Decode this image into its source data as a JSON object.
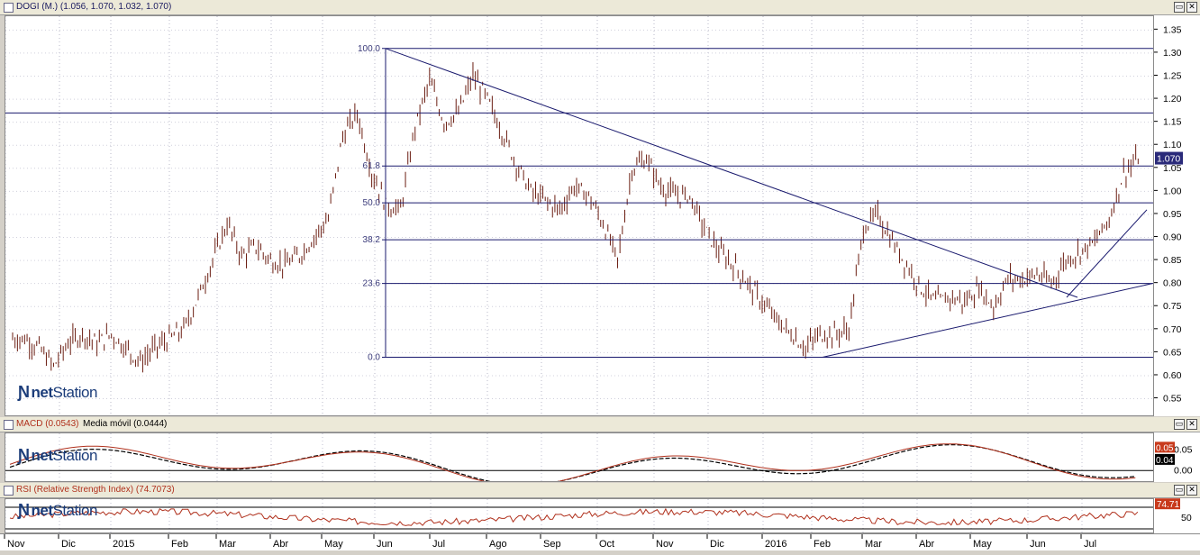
{
  "main_panel": {
    "title": "DOGI (M.) (1.056, 1.070, 1.032, 1.070)",
    "last_price_label": "1.070",
    "logo_net": "net",
    "logo_station": "Station"
  },
  "macd_panel": {
    "title": "MACD (0.0543)",
    "subtitle": "Media móvil (0.0444)",
    "value_label": "0.05",
    "signal_label": "0.04"
  },
  "rsi_panel": {
    "title": "RSI (Relative Strength Index) (74.7073)",
    "value_label": "74.71",
    "level_label": "50"
  },
  "window_buttons": {
    "minimize": "▭",
    "close": "✕"
  },
  "colors": {
    "line": "#1a1a6e",
    "candle": "#6b1e12",
    "macd": "#b0301c",
    "signal": "#000000",
    "rsi": "#b0301c",
    "label_bg": "#2a2a7a",
    "rsi_label_bg": "#c83a1c"
  },
  "chart_data": {
    "type": "line",
    "title": "DOGI (M.) (1.056, 1.070, 1.032, 1.070)",
    "x_labels": [
      "Nov",
      "Dic",
      "2015",
      "Feb",
      "Mar",
      "Abr",
      "May",
      "Jun",
      "Jul",
      "Ago",
      "Sep",
      "Oct",
      "Nov",
      "Dic",
      "2016",
      "Feb",
      "Mar",
      "Abr",
      "May",
      "Jun",
      "Jul"
    ],
    "y_ticks": [
      0.55,
      0.6,
      0.65,
      0.7,
      0.75,
      0.8,
      0.85,
      0.9,
      0.95,
      1.0,
      1.05,
      1.1,
      1.15,
      1.2,
      1.25,
      1.3,
      1.35
    ],
    "ylim": [
      0.51,
      1.38
    ],
    "last_close": 1.07,
    "fibonacci": [
      {
        "label": "100.0",
        "value": 1.31
      },
      {
        "label": "61.8",
        "value": 1.055
      },
      {
        "label": "50.0",
        "value": 0.975
      },
      {
        "label": "38.2",
        "value": 0.895
      },
      {
        "label": "23.6",
        "value": 0.8
      },
      {
        "label": "0.0",
        "value": 0.64
      }
    ],
    "horizontal_line": 1.17,
    "trendlines": [
      {
        "from": [
          "Jun",
          1.31
        ],
        "to": [
          "Jul",
          0.77
        ]
      },
      {
        "from": [
          "Feb",
          0.64
        ],
        "to": [
          "Jul",
          0.8
        ]
      },
      {
        "from": [
          "Jul",
          0.77
        ],
        "to": [
          "Jul",
          0.96
        ]
      }
    ],
    "price_path": [
      [
        "Nov",
        0.68
      ],
      [
        "Nov",
        0.66
      ],
      [
        "Nov",
        0.62
      ],
      [
        "Dic",
        0.67
      ],
      [
        "Dic",
        0.69
      ],
      [
        "Dic",
        0.67
      ],
      [
        "Dic",
        0.69
      ],
      [
        "2015",
        0.66
      ],
      [
        "2015",
        0.63
      ],
      [
        "2015",
        0.66
      ],
      [
        "2015",
        0.68
      ],
      [
        "Feb",
        0.7
      ],
      [
        "Feb",
        0.77
      ],
      [
        "Feb",
        0.85
      ],
      [
        "Feb",
        0.93
      ],
      [
        "Mar",
        0.86
      ],
      [
        "Mar",
        0.88
      ],
      [
        "Mar",
        0.85
      ],
      [
        "Mar",
        0.84
      ],
      [
        "Abr",
        0.86
      ],
      [
        "Abr",
        0.9
      ],
      [
        "Abr",
        0.94
      ],
      [
        "Abr",
        1.12
      ],
      [
        "May",
        1.17
      ],
      [
        "May",
        1.04
      ],
      [
        "May",
        0.97
      ],
      [
        "May",
        0.96
      ],
      [
        "Jun",
        1.14
      ],
      [
        "Jun",
        1.24
      ],
      [
        "Jun",
        1.15
      ],
      [
        "Jun",
        1.17
      ],
      [
        "Jul",
        1.25
      ],
      [
        "Jul",
        1.2
      ],
      [
        "Jul",
        1.13
      ],
      [
        "Ago",
        1.06
      ],
      [
        "Ago",
        1.0
      ],
      [
        "Ago",
        0.98
      ],
      [
        "Ago",
        0.96
      ],
      [
        "Sep",
        1.01
      ],
      [
        "Sep",
        0.99
      ],
      [
        "Sep",
        0.93
      ],
      [
        "Sep",
        0.85
      ],
      [
        "Oct",
        1.05
      ],
      [
        "Oct",
        1.07
      ],
      [
        "Oct",
        1.01
      ],
      [
        "Oct",
        0.99
      ],
      [
        "Nov",
        0.99
      ],
      [
        "Nov",
        0.92
      ],
      [
        "Nov",
        0.87
      ],
      [
        "Nov",
        0.84
      ],
      [
        "Dic",
        0.8
      ],
      [
        "Dic",
        0.76
      ],
      [
        "Dic",
        0.72
      ],
      [
        "Dic",
        0.69
      ],
      [
        "2016",
        0.66
      ],
      [
        "2016",
        0.69
      ],
      [
        "2016",
        0.69
      ],
      [
        "Feb",
        0.7
      ],
      [
        "Feb",
        0.92
      ],
      [
        "Feb",
        0.95
      ],
      [
        "Mar",
        0.89
      ],
      [
        "Mar",
        0.84
      ],
      [
        "Mar",
        0.79
      ],
      [
        "Abr",
        0.76
      ],
      [
        "Abr",
        0.77
      ],
      [
        "Abr",
        0.76
      ],
      [
        "May",
        0.79
      ],
      [
        "May",
        0.75
      ],
      [
        "May",
        0.81
      ],
      [
        "May",
        0.81
      ],
      [
        "Jun",
        0.82
      ],
      [
        "Jun",
        0.8
      ],
      [
        "Jun",
        0.85
      ],
      [
        "Jun",
        0.87
      ],
      [
        "Jul",
        0.89
      ],
      [
        "Jul",
        0.94
      ],
      [
        "Jul",
        1.04
      ],
      [
        "Jul",
        1.07
      ]
    ],
    "macd": {
      "current": 0.0543,
      "signal": 0.0444,
      "y_ticks": [
        0.0,
        0.05
      ]
    },
    "rsi": {
      "current": 74.7073,
      "y_ticks": [
        50
      ]
    }
  }
}
